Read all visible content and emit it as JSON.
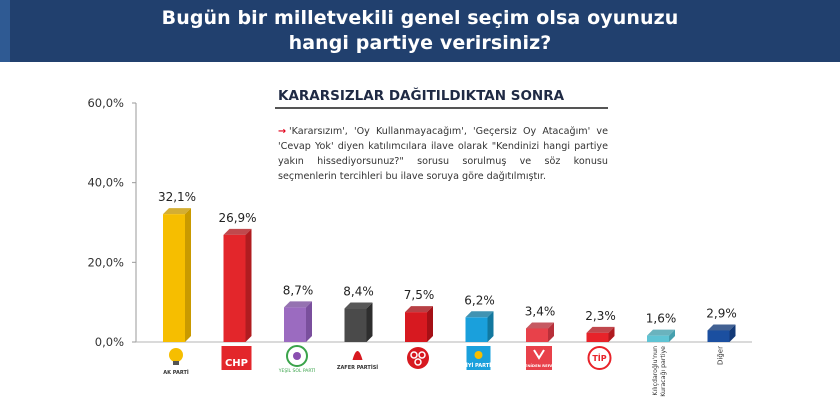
{
  "header": {
    "title": "Bugün bir milletvekili genel seçim olsa oyunuzu\nhangi partiye verirsiniz?"
  },
  "subtitle": "KARARSIZLAR DAĞITILDIKTAN SONRA",
  "note": {
    "arrow": "→",
    "text": "'Kararsızım', 'Oy Kullanmayacağım', 'Geçersiz Oy Atacağım' ve 'Cevap Yok' diyen katılımcılara ilave olarak \"Kendinizi hangi partiye yakın hissediyorsunuz?\" sorusu sorulmuş ve söz konusu seçmenlerin tercihleri bu ilave soruya göre dağıtılmıştır."
  },
  "chart_data": {
    "type": "bar",
    "title": "",
    "xlabel": "",
    "ylabel": "",
    "ylim": [
      0,
      60
    ],
    "yticks": [
      "0,0%",
      "20,0%",
      "40,0%",
      "60,0%"
    ],
    "grid": false,
    "categories": [
      "AK PARTİ",
      "CHP",
      "YEŞİL SOL PARTİ",
      "ZAFER PARTİSİ",
      "MHP",
      "İYİ PARTİ",
      "YENİDEN REFAH",
      "TİP",
      "Kılıçdaroğlu'nun Kuracağı partiye",
      "Diğer"
    ],
    "values": [
      32.1,
      26.9,
      8.7,
      8.4,
      7.5,
      6.2,
      3.4,
      2.3,
      1.6,
      2.9
    ],
    "value_labels": [
      "32,1%",
      "26,9%",
      "8,7%",
      "8,4%",
      "7,5%",
      "6,2%",
      "3,4%",
      "2,3%",
      "1,6%",
      "2,9%"
    ],
    "colors": [
      "#f6be00",
      "#e3262b",
      "#9b6bc0",
      "#4a4a4a",
      "#d71920",
      "#1aa0dc",
      "#e8414a",
      "#e8232a",
      "#5fc4d4",
      "#1b4fa0"
    ],
    "side_colors": [
      "#c99a00",
      "#b01c20",
      "#7a4f9d",
      "#2e2e2e",
      "#a51016",
      "#12789f",
      "#b8303a",
      "#b01a20",
      "#45a0ae",
      "#133a78"
    ],
    "logo_text": {
      "akp": "AK PARTİ",
      "chp": "CHP",
      "yesil": "YEŞİL SOL PARTİ",
      "zafer": "ZAFER PARTİSİ",
      "iyi": "İYİ PARTİ",
      "refah": "YENİDEN REFAH",
      "tip": "TİP",
      "kilic": "Kılıçdaroğlu'nun\nKuracağı partiye",
      "diger": "Diğer"
    }
  }
}
